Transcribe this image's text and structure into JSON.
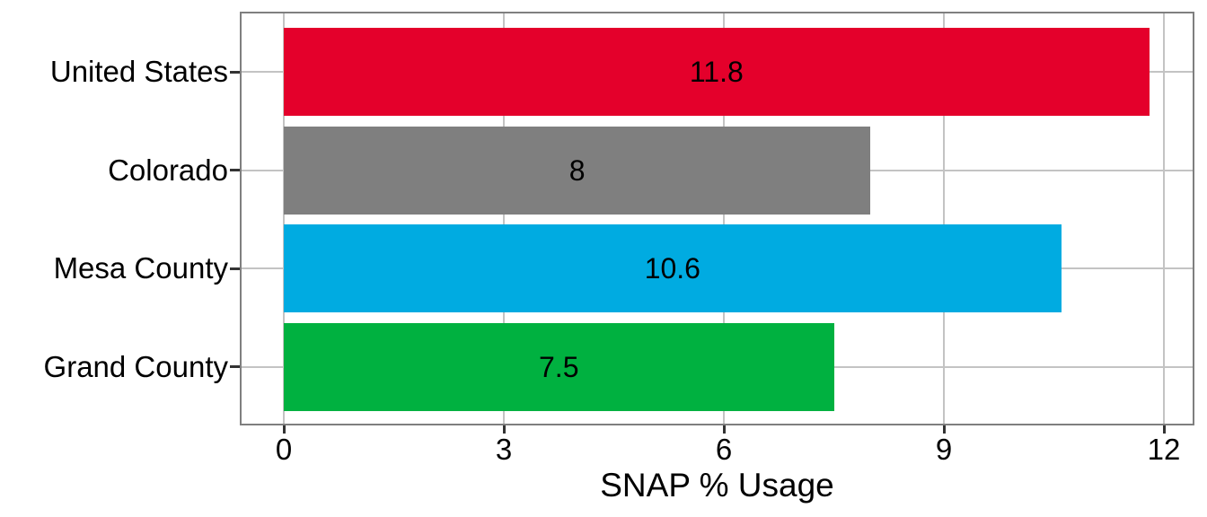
{
  "chart_data": {
    "type": "bar",
    "orientation": "horizontal",
    "title": "",
    "xlabel": "SNAP % Usage",
    "ylabel": "",
    "categories": [
      "United States",
      "Colorado",
      "Mesa County",
      "Grand County"
    ],
    "values": [
      11.8,
      8,
      10.6,
      7.5
    ],
    "value_labels": [
      "11.8",
      "8",
      "10.6",
      "7.5"
    ],
    "bar_colors": [
      "#e4002b",
      "#7f7f7f",
      "#00abe1",
      "#00b140"
    ],
    "xlim": [
      0,
      12
    ],
    "x_ticks": [
      0,
      3,
      6,
      9,
      12
    ],
    "x_tick_labels": [
      "0",
      "3",
      "6",
      "9",
      "12"
    ],
    "grid": true,
    "legend": "none"
  },
  "colors": {
    "background": "#ffffff",
    "panel_border": "#7f7f7f",
    "gridline": "#c3c3c3",
    "tick_mark": "#333333",
    "text": "#000000"
  }
}
